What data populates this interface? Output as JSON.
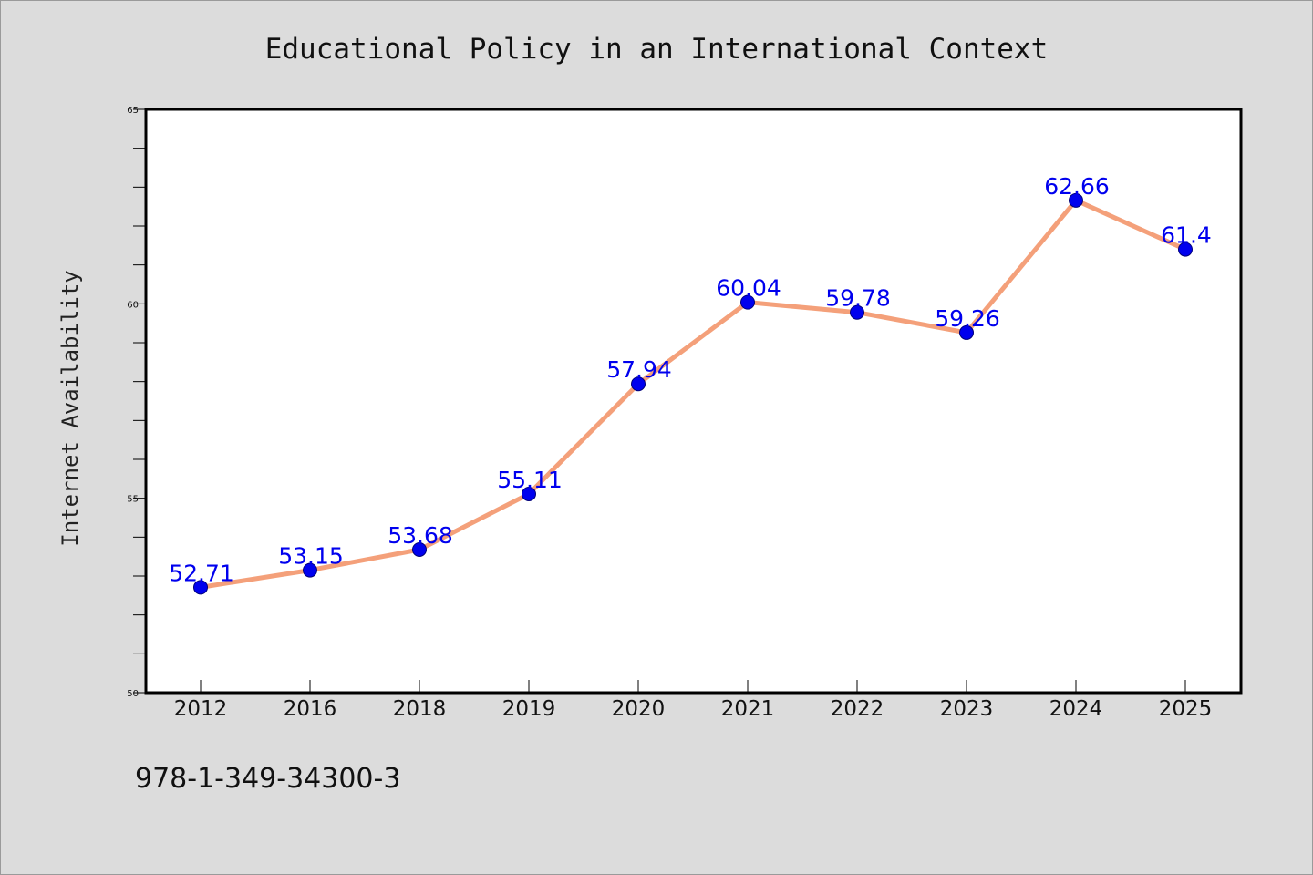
{
  "chart_data": {
    "type": "line",
    "title": "Educational Policy in an International Context",
    "ylabel": "Internet Availability",
    "xlabel": "",
    "categories": [
      "2012",
      "2016",
      "2018",
      "2019",
      "2020",
      "2021",
      "2022",
      "2023",
      "2024",
      "2025"
    ],
    "series": [
      {
        "values": [
          52.71,
          53.15,
          53.68,
          55.11,
          57.94,
          60.04,
          59.78,
          59.26,
          62.66,
          61.4
        ],
        "labels": [
          "52.71",
          "53.15",
          "53.68",
          "55.11",
          "57.94",
          "60.04",
          "59.78",
          "59.26",
          "62.66",
          "61.4"
        ],
        "line_color": "#f4a07a",
        "marker_color": "#0000ee"
      }
    ],
    "ylim": [
      50,
      65
    ],
    "yticks": [
      "50",
      "55",
      "60",
      "65"
    ],
    "grid": false,
    "legend": "none"
  },
  "footer": {
    "isbn": "978-1-349-34300-3"
  },
  "colors": {
    "background": "#dcdcdc",
    "plot_background": "#ffffff",
    "label_color": "#0000ee"
  }
}
